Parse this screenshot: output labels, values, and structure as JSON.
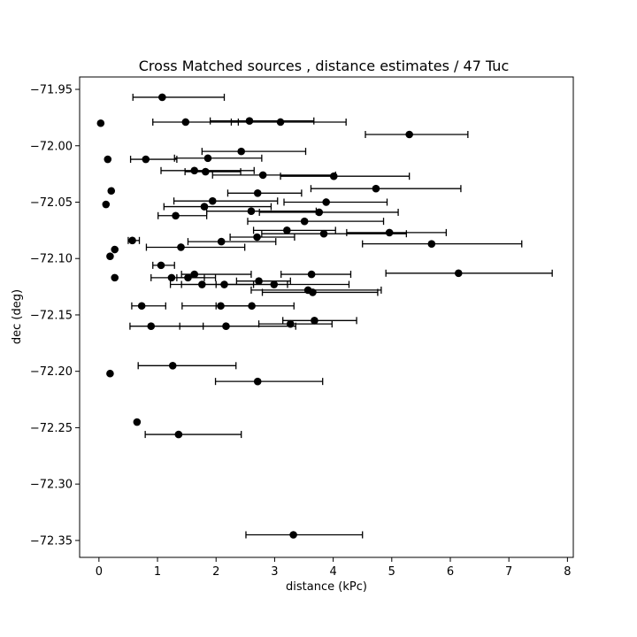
{
  "chart_data": {
    "type": "scatter",
    "title": "Cross Matched sources , distance estimates / 47 Tuc",
    "xlabel": "distance (kPc)",
    "ylabel": "dec (deg)",
    "xlim": [
      -0.33,
      8.1
    ],
    "ylim": [
      -72.365,
      -71.939
    ],
    "grid": false,
    "legend": "none",
    "marker_color": "#000000",
    "x_ticks": [
      0,
      1,
      2,
      3,
      4,
      5,
      6,
      7,
      8
    ],
    "y_ticks": [
      -71.95,
      -72.0,
      -72.05,
      -72.1,
      -72.15,
      -72.2,
      -72.25,
      -72.3,
      -72.35
    ],
    "x_tick_labels": [
      "0",
      "1",
      "2",
      "3",
      "4",
      "5",
      "6",
      "7",
      "8"
    ],
    "y_tick_labels": [
      "−71.95",
      "−72.00",
      "−72.05",
      "−72.10",
      "−72.15",
      "−72.20",
      "−72.25",
      "−72.30",
      "−72.35"
    ],
    "points": [
      {
        "x": 1.08,
        "y": -71.957,
        "xlo": 0.58,
        "xhi": 2.14
      },
      {
        "x": 0.03,
        "y": -71.98
      },
      {
        "x": 1.48,
        "y": -71.979,
        "xlo": 0.92,
        "xhi": 2.38
      },
      {
        "x": 2.57,
        "y": -71.978,
        "xlo": 1.9,
        "xhi": 3.67
      },
      {
        "x": 3.1,
        "y": -71.979,
        "xlo": 2.26,
        "xhi": 4.22
      },
      {
        "x": 5.3,
        "y": -71.99,
        "xlo": 4.55,
        "xhi": 6.3
      },
      {
        "x": 2.43,
        "y": -72.005,
        "xlo": 1.76,
        "xhi": 3.53
      },
      {
        "x": 0.15,
        "y": -72.012
      },
      {
        "x": 0.8,
        "y": -72.012,
        "xlo": 0.54,
        "xhi": 1.33
      },
      {
        "x": 1.86,
        "y": -72.011,
        "xlo": 1.29,
        "xhi": 2.78
      },
      {
        "x": 1.63,
        "y": -72.022,
        "xlo": 1.06,
        "xhi": 2.65
      },
      {
        "x": 1.82,
        "y": -72.023,
        "xlo": 1.47,
        "xhi": 2.42
      },
      {
        "x": 2.8,
        "y": -72.026,
        "xlo": 1.94,
        "xhi": 4.04
      },
      {
        "x": 4.01,
        "y": -72.027,
        "xlo": 3.1,
        "xhi": 5.3
      },
      {
        "x": 0.21,
        "y": -72.04
      },
      {
        "x": 4.73,
        "y": -72.038,
        "xlo": 3.62,
        "xhi": 6.18
      },
      {
        "x": 2.71,
        "y": -72.042,
        "xlo": 2.2,
        "xhi": 3.46
      },
      {
        "x": 0.12,
        "y": -72.052
      },
      {
        "x": 1.94,
        "y": -72.049,
        "xlo": 1.28,
        "xhi": 3.05
      },
      {
        "x": 3.88,
        "y": -72.05,
        "xlo": 3.16,
        "xhi": 4.92
      },
      {
        "x": 1.8,
        "y": -72.054,
        "xlo": 1.11,
        "xhi": 2.94
      },
      {
        "x": 2.6,
        "y": -72.058,
        "xlo": 1.84,
        "xhi": 3.71
      },
      {
        "x": 3.76,
        "y": -72.059,
        "xlo": 2.74,
        "xhi": 5.11
      },
      {
        "x": 1.31,
        "y": -72.062,
        "xlo": 1.01,
        "xhi": 1.84
      },
      {
        "x": 3.51,
        "y": -72.067,
        "xlo": 2.54,
        "xhi": 4.86
      },
      {
        "x": 3.21,
        "y": -72.075,
        "xlo": 2.64,
        "xhi": 4.04
      },
      {
        "x": 4.96,
        "y": -72.077,
        "xlo": 4.23,
        "xhi": 5.93
      },
      {
        "x": 3.84,
        "y": -72.078,
        "xlo": 2.78,
        "xhi": 5.25
      },
      {
        "x": 2.7,
        "y": -72.081,
        "xlo": 2.24,
        "xhi": 3.34
      },
      {
        "x": 0.57,
        "y": -72.084,
        "xlo": 0.5,
        "xhi": 0.69
      },
      {
        "x": 2.09,
        "y": -72.085,
        "xlo": 1.52,
        "xhi": 3.02
      },
      {
        "x": 5.68,
        "y": -72.087,
        "xlo": 4.5,
        "xhi": 7.22
      },
      {
        "x": 1.4,
        "y": -72.09,
        "xlo": 0.81,
        "xhi": 2.49
      },
      {
        "x": 0.27,
        "y": -72.092
      },
      {
        "x": 0.19,
        "y": -72.098
      },
      {
        "x": 1.06,
        "y": -72.106,
        "xlo": 0.92,
        "xhi": 1.29
      },
      {
        "x": 6.14,
        "y": -72.113,
        "xlo": 4.9,
        "xhi": 7.74
      },
      {
        "x": 1.63,
        "y": -72.114,
        "xlo": 1.41,
        "xhi": 2.6
      },
      {
        "x": 3.63,
        "y": -72.114,
        "xlo": 3.11,
        "xhi": 4.3
      },
      {
        "x": 1.24,
        "y": -72.117,
        "xlo": 0.89,
        "xhi": 1.99
      },
      {
        "x": 1.52,
        "y": -72.117,
        "xlo": 1.33,
        "xhi": 1.8
      },
      {
        "x": 0.27,
        "y": -72.117
      },
      {
        "x": 2.73,
        "y": -72.12,
        "xlo": 2.35,
        "xhi": 3.27
      },
      {
        "x": 1.76,
        "y": -72.123,
        "xlo": 1.22,
        "xhi": 2.64
      },
      {
        "x": 2.14,
        "y": -72.123,
        "xlo": 1.41,
        "xhi": 3.22
      },
      {
        "x": 2.99,
        "y": -72.123,
        "xlo": 2.0,
        "xhi": 4.27
      },
      {
        "x": 3.57,
        "y": -72.128,
        "xlo": 2.6,
        "xhi": 4.82
      },
      {
        "x": 3.65,
        "y": -72.13,
        "xlo": 2.79,
        "xhi": 4.76
      },
      {
        "x": 0.73,
        "y": -72.142,
        "xlo": 0.56,
        "xhi": 1.14
      },
      {
        "x": 2.08,
        "y": -72.142,
        "xlo": 1.42,
        "xhi": 2.62
      },
      {
        "x": 2.61,
        "y": -72.142,
        "xlo": 2.0,
        "xhi": 3.33
      },
      {
        "x": 3.68,
        "y": -72.155,
        "xlo": 3.14,
        "xhi": 4.4
      },
      {
        "x": 3.27,
        "y": -72.158,
        "xlo": 2.73,
        "xhi": 3.98
      },
      {
        "x": 0.89,
        "y": -72.16,
        "xlo": 0.53,
        "xhi": 1.78
      },
      {
        "x": 2.17,
        "y": -72.16,
        "xlo": 1.38,
        "xhi": 3.36
      },
      {
        "x": 1.26,
        "y": -72.195,
        "xlo": 0.67,
        "xhi": 2.34
      },
      {
        "x": 0.19,
        "y": -72.202
      },
      {
        "x": 2.71,
        "y": -72.209,
        "xlo": 1.99,
        "xhi": 3.82
      },
      {
        "x": 0.65,
        "y": -72.245
      },
      {
        "x": 1.36,
        "y": -72.256,
        "xlo": 0.79,
        "xhi": 2.43
      },
      {
        "x": 3.32,
        "y": -72.345,
        "xlo": 2.51,
        "xhi": 4.5
      }
    ]
  }
}
